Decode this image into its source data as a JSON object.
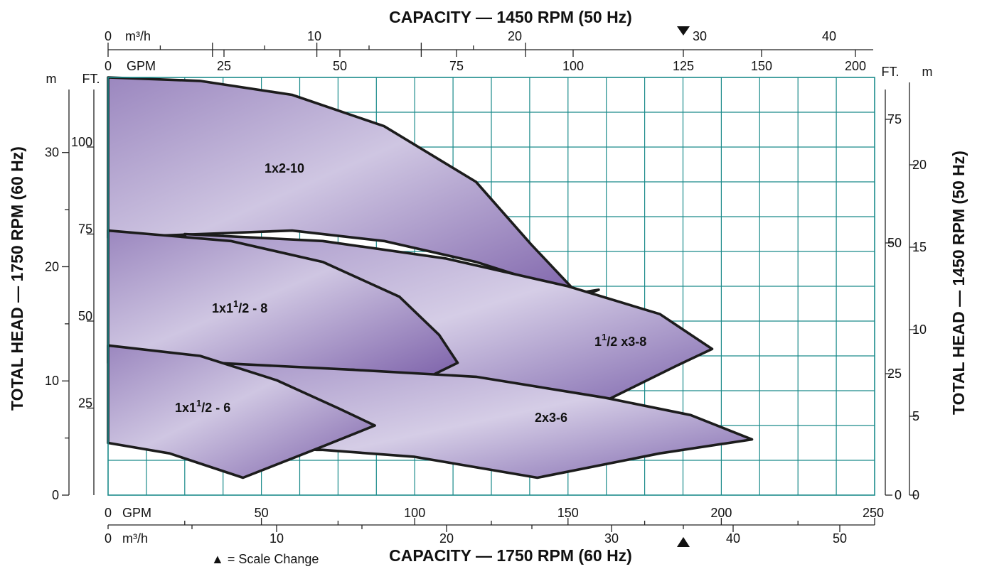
{
  "chart_data": {
    "type": "area",
    "title_top": "CAPACITY — 1450 RPM (50 Hz)",
    "title_bottom": "CAPACITY — 1750 RPM (60 Hz)",
    "ylabel_left": "TOTAL HEAD — 1750 RPM (60 Hz)",
    "ylabel_right": "TOTAL HEAD — 1450 RPM (50 Hz)",
    "scale_change_note": "▲ = Scale Change",
    "axes": {
      "bottom_gpm": {
        "unit": "GPM",
        "zero": "0",
        "ticks": [
          "50",
          "100",
          "150",
          "200",
          "250"
        ]
      },
      "bottom_m3h": {
        "unit": "m³/h",
        "zero": "0",
        "ticks": [
          "10",
          "20",
          "30",
          "40",
          "50"
        ]
      },
      "top_gpm": {
        "unit": "GPM",
        "zero": "0",
        "ticks": [
          "25",
          "50",
          "75",
          "100",
          "125",
          "150",
          "200"
        ]
      },
      "top_m3h": {
        "unit": "m³/h",
        "zero": "0",
        "ticks": [
          "10",
          "20",
          "30",
          "40"
        ]
      },
      "left_m": {
        "unit": "m",
        "ticks": [
          "0",
          "10",
          "20",
          "30"
        ]
      },
      "left_ft": {
        "unit": "FT.",
        "ticks": [
          "25",
          "50",
          "75",
          "100"
        ]
      },
      "right_ft": {
        "unit": "FT.",
        "ticks": [
          "0",
          "25",
          "50",
          "75"
        ]
      },
      "right_m": {
        "unit": "m",
        "ticks": [
          "0",
          "5",
          "10",
          "15",
          "20"
        ]
      },
      "xlim_gpm_60hz": [
        0,
        250
      ],
      "ylim_ft_60hz": [
        0,
        120
      ]
    },
    "regions": [
      {
        "name": "1x2-10",
        "label_main": "1x2-10",
        "label_sup": "",
        "label_frac": "",
        "label_tail": "",
        "outline_gpm_ft": [
          [
            0,
            120
          ],
          [
            30,
            119
          ],
          [
            60,
            115
          ],
          [
            90,
            106
          ],
          [
            120,
            90
          ],
          [
            138,
            72
          ],
          [
            153,
            58
          ],
          [
            160,
            59
          ],
          [
            157,
            58
          ],
          [
            145,
            60
          ],
          [
            120,
            67
          ],
          [
            90,
            73
          ],
          [
            60,
            76
          ],
          [
            30,
            75
          ],
          [
            0,
            74
          ],
          [
            0,
            120
          ]
        ]
      },
      {
        "name": "1-1/2x3-8",
        "label_main": "1",
        "label_sup": "1",
        "label_frac": "/2",
        "label_tail": " x3-8",
        "outline_gpm_ft": [
          [
            25,
            75
          ],
          [
            70,
            73
          ],
          [
            110,
            68
          ],
          [
            150,
            60
          ],
          [
            180,
            52
          ],
          [
            197,
            42
          ],
          [
            185,
            37
          ],
          [
            162,
            27
          ],
          [
            143,
            30
          ],
          [
            115,
            34
          ],
          [
            70,
            37
          ],
          [
            35,
            38
          ],
          [
            25,
            75
          ]
        ]
      },
      {
        "name": "1x1-1/2-8",
        "label_main": "1x1",
        "label_sup": "1",
        "label_frac": "/2",
        "label_tail": " - 8",
        "outline_gpm_ft": [
          [
            0,
            76
          ],
          [
            40,
            73
          ],
          [
            70,
            67
          ],
          [
            95,
            57
          ],
          [
            108,
            46
          ],
          [
            114,
            38
          ],
          [
            107,
            35
          ],
          [
            105,
            34
          ],
          [
            80,
            36
          ],
          [
            45,
            37
          ],
          [
            0,
            38
          ],
          [
            0,
            76
          ]
        ]
      },
      {
        "name": "2x3-6",
        "label_main": "2x3-6",
        "label_sup": "",
        "label_frac": "",
        "label_tail": "",
        "outline_gpm_ft": [
          [
            35,
            38
          ],
          [
            80,
            36
          ],
          [
            120,
            34
          ],
          [
            162,
            28
          ],
          [
            190,
            23
          ],
          [
            210,
            16
          ],
          [
            180,
            12
          ],
          [
            140,
            5
          ],
          [
            100,
            11
          ],
          [
            70,
            13
          ],
          [
            68,
            13
          ],
          [
            45,
            15
          ],
          [
            35,
            38
          ]
        ]
      },
      {
        "name": "1x1-1/2-6",
        "label_main": "1x1",
        "label_sup": "1",
        "label_frac": "/2",
        "label_tail": " - 6",
        "outline_gpm_ft": [
          [
            0,
            43
          ],
          [
            30,
            40
          ],
          [
            55,
            33
          ],
          [
            75,
            25
          ],
          [
            87,
            20
          ],
          [
            70,
            14
          ],
          [
            44,
            5
          ],
          [
            20,
            12
          ],
          [
            0,
            15
          ],
          [
            0,
            43
          ]
        ]
      }
    ]
  }
}
